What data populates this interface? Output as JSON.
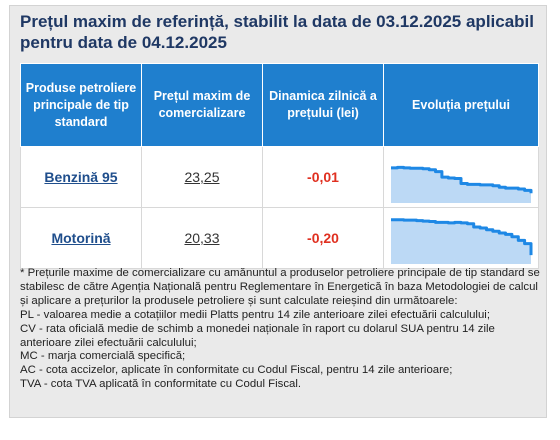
{
  "title": "Prețul maxim de referință, stabilit la data de 03.12.2025 aplicabil pentru data de 04.12.2025",
  "table": {
    "headers": [
      "Produse petroliere principale de tip standard",
      "Prețul maxim de comercializare",
      "Dinamica zilnică a prețului (lei)",
      "Evoluția prețului"
    ],
    "rows": [
      {
        "product": "Benzină 95",
        "price": "23,25",
        "change": "-0,01",
        "trend": [
          0.72,
          0.73,
          0.72,
          0.71,
          0.71,
          0.7,
          0.68,
          0.64,
          0.52,
          0.5,
          0.49,
          0.38,
          0.36,
          0.36,
          0.35,
          0.35,
          0.33,
          0.3,
          0.28,
          0.28,
          0.26,
          0.23,
          0.17
        ]
      },
      {
        "product": "Motorină",
        "price": "20,33",
        "change": "-0,20",
        "trend": [
          0.92,
          0.92,
          0.91,
          0.91,
          0.9,
          0.89,
          0.88,
          0.86,
          0.86,
          0.85,
          0.86,
          0.85,
          0.83,
          0.76,
          0.74,
          0.7,
          0.67,
          0.63,
          0.6,
          0.55,
          0.47,
          0.4,
          0.15
        ]
      }
    ]
  },
  "colors": {
    "header_bg": "#1f7fce",
    "line": "#1e88e5",
    "fill": "#bcd9f5",
    "change": "#e03020"
  },
  "notes": [
    "* Prețurile maxime de comercializare cu amănuntul a produselor petroliere principale de tip standard se stabilesc de către Agenția Națională pentru Reglementare în Energetică în baza Metodologiei de calcul și aplicare a prețurilor la produsele petroliere și sunt calculate reieșind din următoarele:",
    "PL - valoarea medie a cotațiilor medii Platts pentru 14 zile anterioare zilei efectuării calculului;",
    "CV - rata oficială medie de schimb a monedei naționale în raport cu dolarul SUA pentru 14 zile anterioare zilei efectuării calculului;",
    "MC - marja comercială specifică;",
    "AC - cota accizelor, aplicate în conformitate cu Codul Fiscal, pentru 14 zile anterioare;",
    "TVA - cota TVA aplicată în conformitate cu Codul Fiscal."
  ]
}
